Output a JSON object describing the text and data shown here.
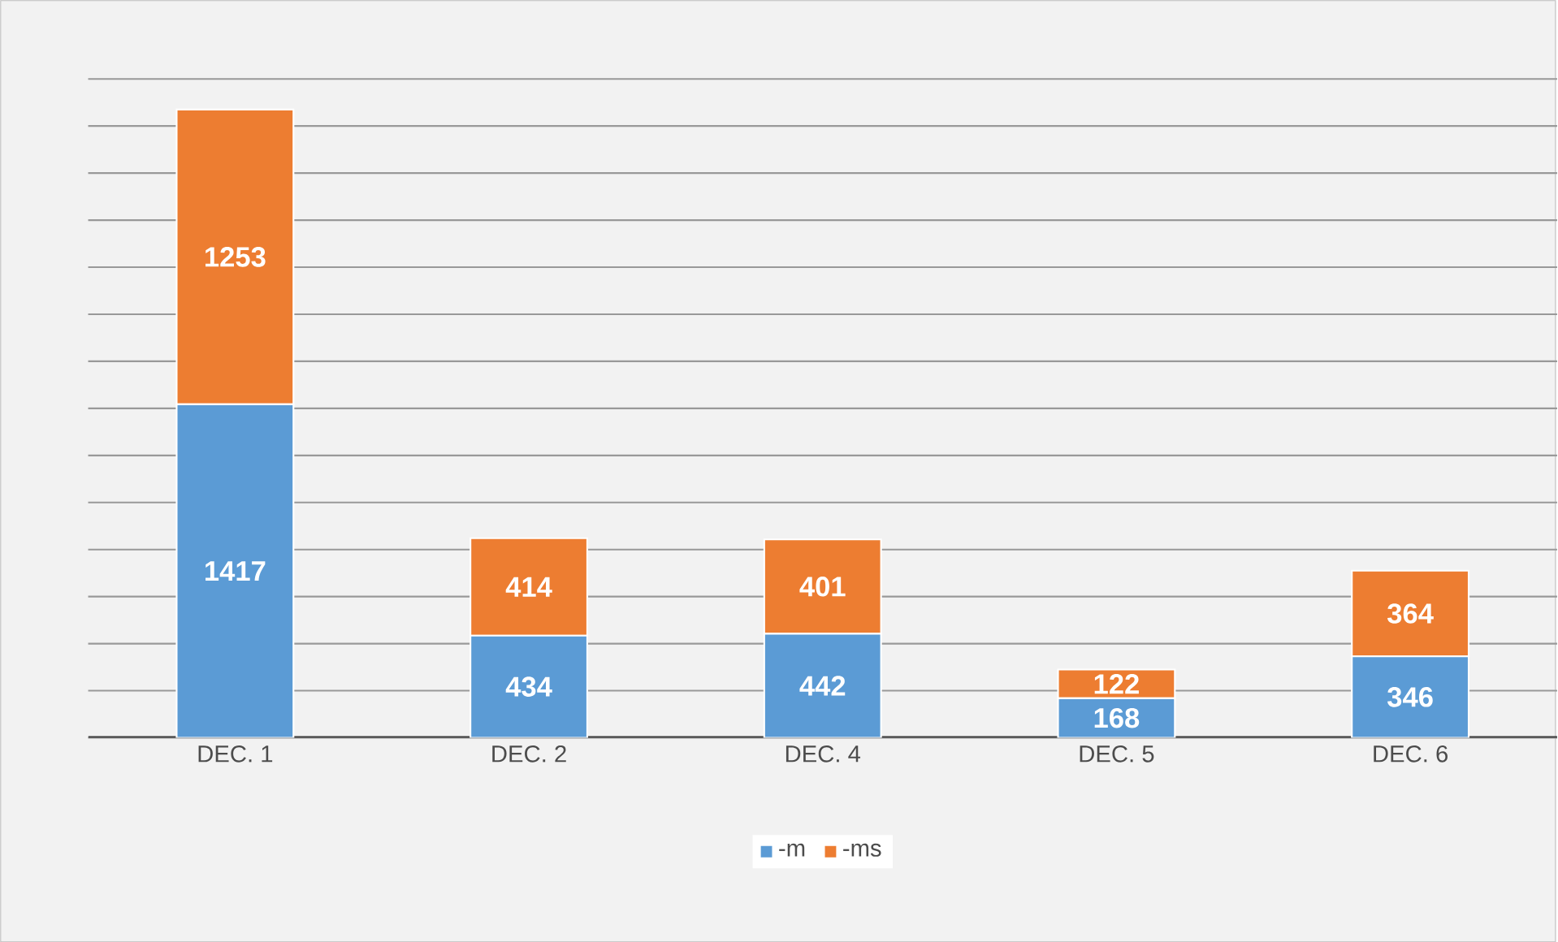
{
  "chart_data": {
    "type": "bar",
    "stacked": true,
    "categories": [
      "DEC. 1",
      "DEC. 2",
      "DEC. 4",
      "DEC. 5",
      "DEC. 6"
    ],
    "series": [
      {
        "name": "-m",
        "color": "#5b9bd5",
        "values": [
          1417,
          434,
          442,
          168,
          346
        ]
      },
      {
        "name": "-ms",
        "color": "#ed7d31",
        "values": [
          1253,
          414,
          401,
          122,
          364
        ]
      }
    ],
    "tick_labels": "x",
    "grid": "y",
    "legend": "bottom",
    "data_labels": true
  }
}
